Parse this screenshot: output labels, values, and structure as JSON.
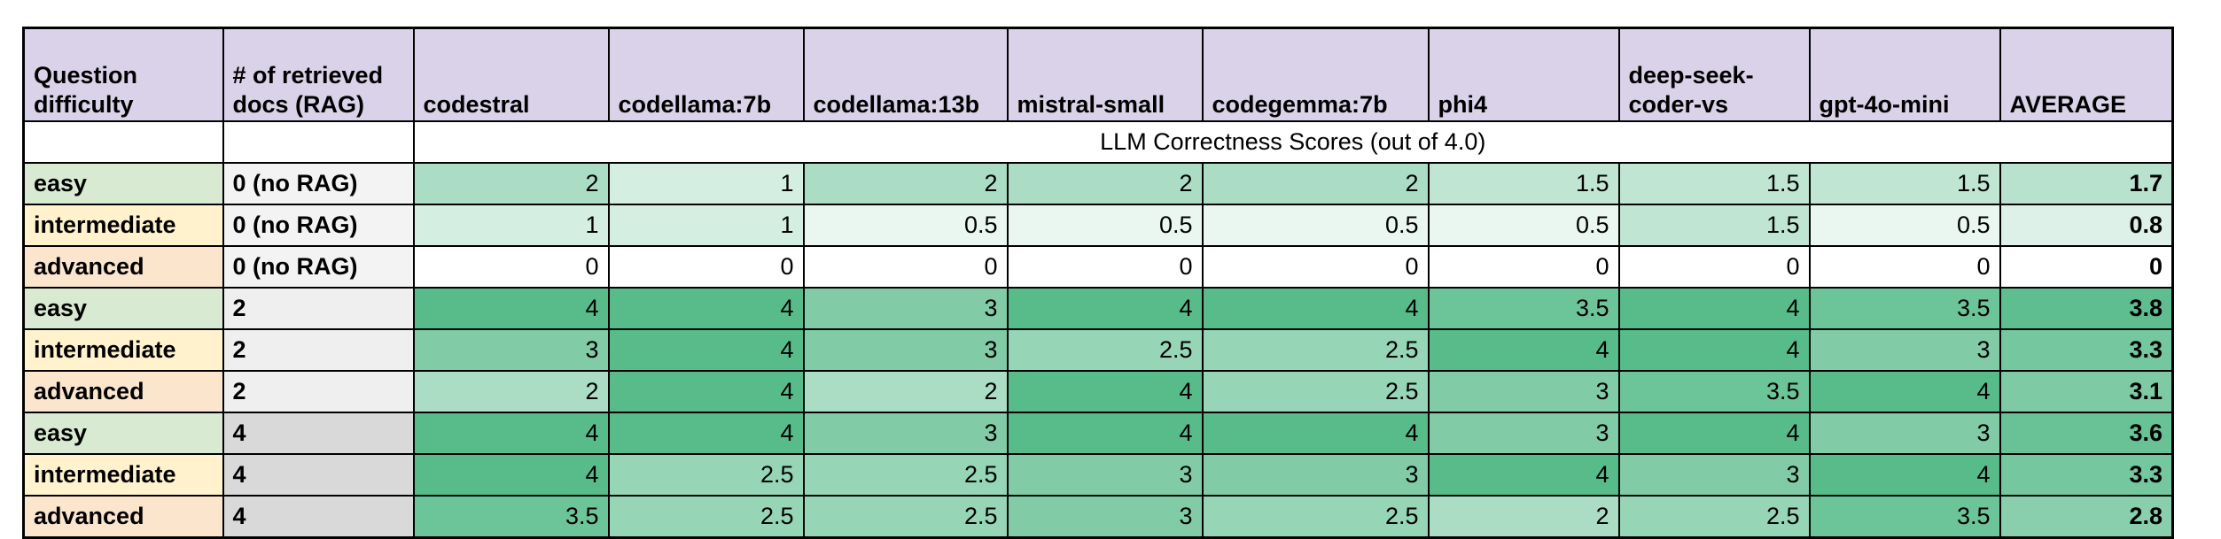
{
  "chart_data": {
    "type": "table",
    "title": "LLM Correctness Scores (out of 4.0)",
    "columns": [
      "Question difficulty",
      "# of retrieved docs (RAG)",
      "codestral",
      "codellama:7b",
      "codellama:13b",
      "mistral-small",
      "codegemma:7b",
      "phi4",
      "deep-seek-coder-vs",
      "gpt-4o-mini",
      "AVERAGE"
    ],
    "model_columns": [
      "codestral",
      "codellama:7b",
      "codellama:13b",
      "mistral-small",
      "codegemma:7b",
      "phi4",
      "deep-seek-coder-vs",
      "gpt-4o-mini"
    ],
    "rows": [
      {
        "difficulty": "easy",
        "rag_docs": "0 (no RAG)",
        "scores": [
          2,
          1,
          2,
          2,
          2,
          1.5,
          1.5,
          1.5
        ],
        "average": 1.7
      },
      {
        "difficulty": "intermediate",
        "rag_docs": "0 (no RAG)",
        "scores": [
          1,
          1,
          0.5,
          0.5,
          0.5,
          0.5,
          1.5,
          0.5
        ],
        "average": 0.8
      },
      {
        "difficulty": "advanced",
        "rag_docs": "0 (no RAG)",
        "scores": [
          0,
          0,
          0,
          0,
          0,
          0,
          0,
          0
        ],
        "average": 0
      },
      {
        "difficulty": "easy",
        "rag_docs": "2",
        "scores": [
          4,
          4,
          3,
          4,
          4,
          3.5,
          4,
          3.5
        ],
        "average": 3.8
      },
      {
        "difficulty": "intermediate",
        "rag_docs": "2",
        "scores": [
          3,
          4,
          3,
          2.5,
          2.5,
          4,
          4,
          3
        ],
        "average": 3.3
      },
      {
        "difficulty": "advanced",
        "rag_docs": "2",
        "scores": [
          2,
          4,
          2,
          4,
          2.5,
          3,
          3.5,
          4
        ],
        "average": 3.1
      },
      {
        "difficulty": "easy",
        "rag_docs": "4",
        "scores": [
          4,
          4,
          3,
          4,
          4,
          3,
          4,
          3
        ],
        "average": 3.6
      },
      {
        "difficulty": "intermediate",
        "rag_docs": "4",
        "scores": [
          4,
          2.5,
          2.5,
          3,
          3,
          4,
          3,
          4
        ],
        "average": 3.3
      },
      {
        "difficulty": "advanced",
        "rag_docs": "4",
        "scores": [
          3.5,
          2.5,
          2.5,
          3,
          2.5,
          2,
          2.5,
          3.5
        ],
        "average": 2.8
      }
    ]
  },
  "colors": {
    "header_bg": "#d9d2e9",
    "border": "#000000",
    "difficulty_bg": {
      "easy": "#d9ead3",
      "intermediate": "#fff2cc",
      "advanced": "#fce5cd"
    },
    "rag_bg": {
      "0 (no RAG)": "#f3f3f3",
      "2": "#efefef",
      "4": "#d9d9d9"
    },
    "score_scale": {
      "min_value": 0,
      "max_value": 4,
      "min_color": "#ffffff",
      "max_color": "#57bb8a"
    }
  }
}
